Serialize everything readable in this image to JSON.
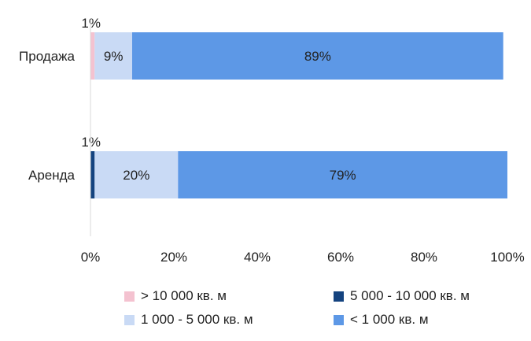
{
  "chart_data": {
    "type": "bar",
    "orientation": "horizontal",
    "stacked": true,
    "percent": true,
    "categories": [
      "Продажа",
      "Аренда"
    ],
    "series": [
      {
        "name": "> 10 000 кв. м",
        "color": "#f4c2d0",
        "values": [
          1,
          0
        ],
        "labels": [
          "1%",
          ""
        ]
      },
      {
        "name": "5 000 - 10 000 кв. м",
        "color": "#14437f",
        "values": [
          0,
          1
        ],
        "labels": [
          "",
          "1%"
        ]
      },
      {
        "name": "1 000 - 5 000 кв. м",
        "color": "#c9daf5",
        "values": [
          9,
          20
        ],
        "labels": [
          "9%",
          "20%"
        ]
      },
      {
        "name": "< 1 000 кв. м",
        "color": "#5d98e6",
        "values": [
          89,
          79
        ],
        "labels": [
          "89%",
          "79%"
        ]
      }
    ],
    "xlim": [
      0,
      100
    ],
    "x_ticks": [
      "0%",
      "20%",
      "40%",
      "60%",
      "80%",
      "100%"
    ],
    "grid": false,
    "legend_position": "bottom"
  }
}
